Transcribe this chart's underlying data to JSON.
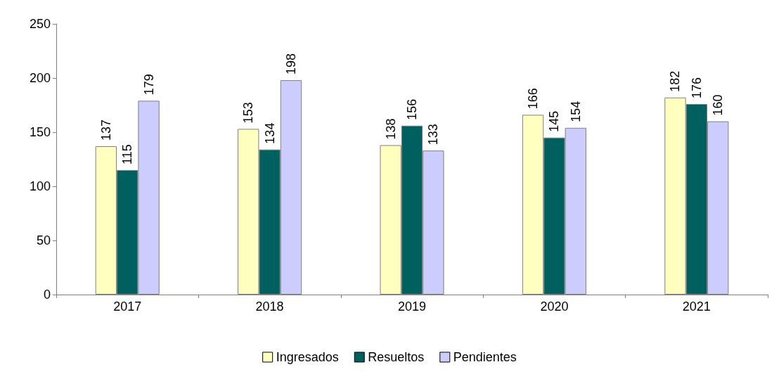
{
  "chart_data": {
    "type": "bar",
    "categories": [
      "2017",
      "2018",
      "2019",
      "2020",
      "2021"
    ],
    "series": [
      {
        "name": "Ingresados",
        "color": "#ffffc0",
        "values": [
          137,
          153,
          138,
          166,
          182
        ]
      },
      {
        "name": "Resueltos",
        "color": "#006060",
        "values": [
          115,
          134,
          156,
          145,
          176
        ]
      },
      {
        "name": "Pendientes",
        "color": "#ccccff",
        "values": [
          179,
          198,
          133,
          154,
          160
        ]
      }
    ],
    "ylim": [
      0,
      250
    ],
    "yticks": [
      0,
      50,
      100,
      150,
      200,
      250
    ],
    "grid": false,
    "legend": "bottom",
    "data_labels": true
  }
}
